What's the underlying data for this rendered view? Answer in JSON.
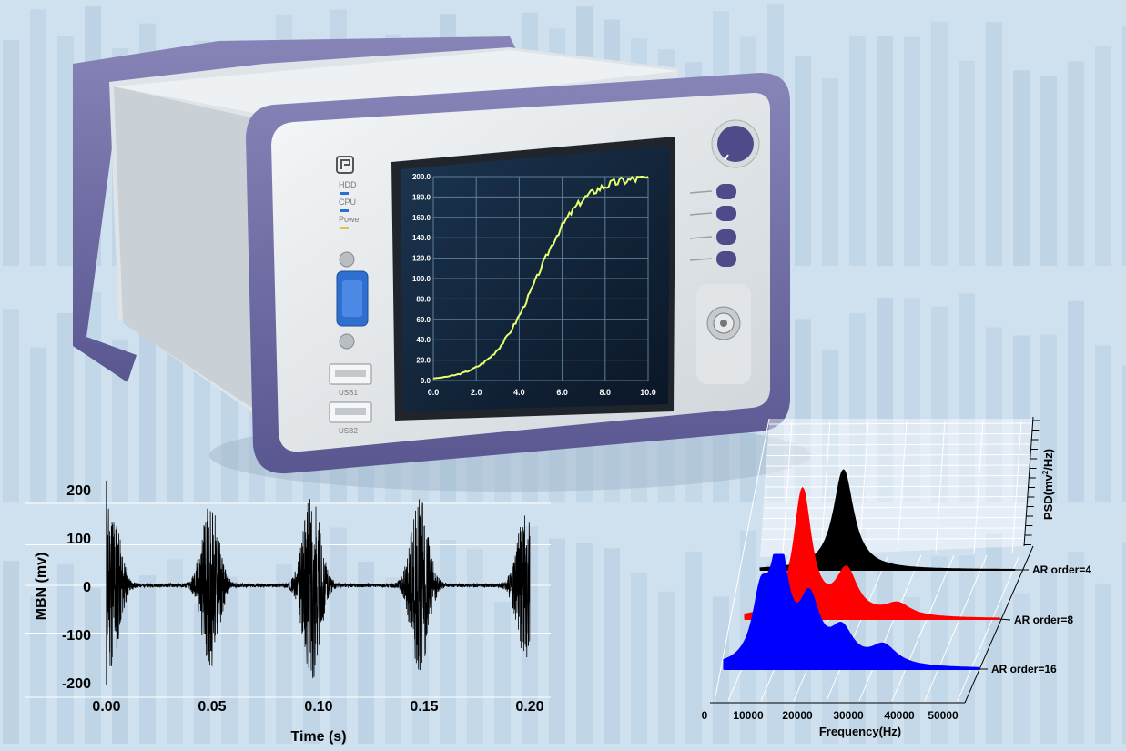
{
  "colors": {
    "background": "#cfe0ee",
    "device_bezel": "#6e6aa0",
    "device_body": "#e9ecef",
    "screen": "#0d1e33",
    "screen_curve": "#e8ff70",
    "series_ar4": "#000000",
    "series_ar8": "#ff0000",
    "series_ar16": "#0000ff"
  },
  "device": {
    "indicators": [
      "HDD",
      "CPU",
      "Power"
    ],
    "ports": [
      "USB1",
      "USB2"
    ],
    "icons": [
      "logo-icon",
      "knob-icon",
      "vga-port-icon",
      "usb-port-icon",
      "connector-icon"
    ],
    "screen_plot": {
      "x_ticks": [
        "0.0",
        "2.0",
        "4.0",
        "6.0",
        "8.0",
        "10.0"
      ],
      "y_ticks": [
        "0.0",
        "20.0",
        "40.0",
        "60.0",
        "80.0",
        "100.0",
        "120.0",
        "140.0",
        "160.0",
        "180.0",
        "200.0"
      ]
    }
  },
  "chart_data": [
    {
      "type": "line",
      "xlabel": "Time (s)",
      "ylabel": "MBN (mv)",
      "x_ticks": [
        "0.00",
        "0.05",
        "0.10",
        "0.15",
        "0.20"
      ],
      "y_ticks": [
        "200",
        "100",
        "0",
        "-100",
        "-200"
      ],
      "xlim": [
        0,
        0.2
      ],
      "ylim": [
        -200,
        200
      ],
      "grid": true,
      "bursts": [
        {
          "t": 0.002,
          "amp": 180
        },
        {
          "t": 0.049,
          "amp": 170
        },
        {
          "t": 0.097,
          "amp": 195
        },
        {
          "t": 0.148,
          "amp": 180
        },
        {
          "t": 0.198,
          "amp": 150
        }
      ]
    },
    {
      "type": "area",
      "xlabel": "Frequency(Hz)",
      "zlabel_prefix": "PSD(mv",
      "zlabel_sup": "2",
      "zlabel_suffix": "/Hz)",
      "x_ticks": [
        "0",
        "10000",
        "20000",
        "30000",
        "40000",
        "50000"
      ],
      "xlim": [
        0,
        55000
      ],
      "series": [
        {
          "name": "AR order=4",
          "color": "#000000",
          "peaks": [
            {
              "f": 18000,
              "h": 1.0
            }
          ]
        },
        {
          "name": "AR order=8",
          "color": "#ff0000",
          "peaks": [
            {
              "f": 12500,
              "h": 1.0
            },
            {
              "f": 22000,
              "h": 0.35
            },
            {
              "f": 33000,
              "h": 0.1
            }
          ]
        },
        {
          "name": "AR order=16",
          "color": "#0000ff",
          "peaks": [
            {
              "f": 8000,
              "h": 0.55
            },
            {
              "f": 12000,
              "h": 1.0
            },
            {
              "f": 18500,
              "h": 0.55
            },
            {
              "f": 25500,
              "h": 0.3
            },
            {
              "f": 34500,
              "h": 0.18
            }
          ]
        }
      ]
    }
  ]
}
